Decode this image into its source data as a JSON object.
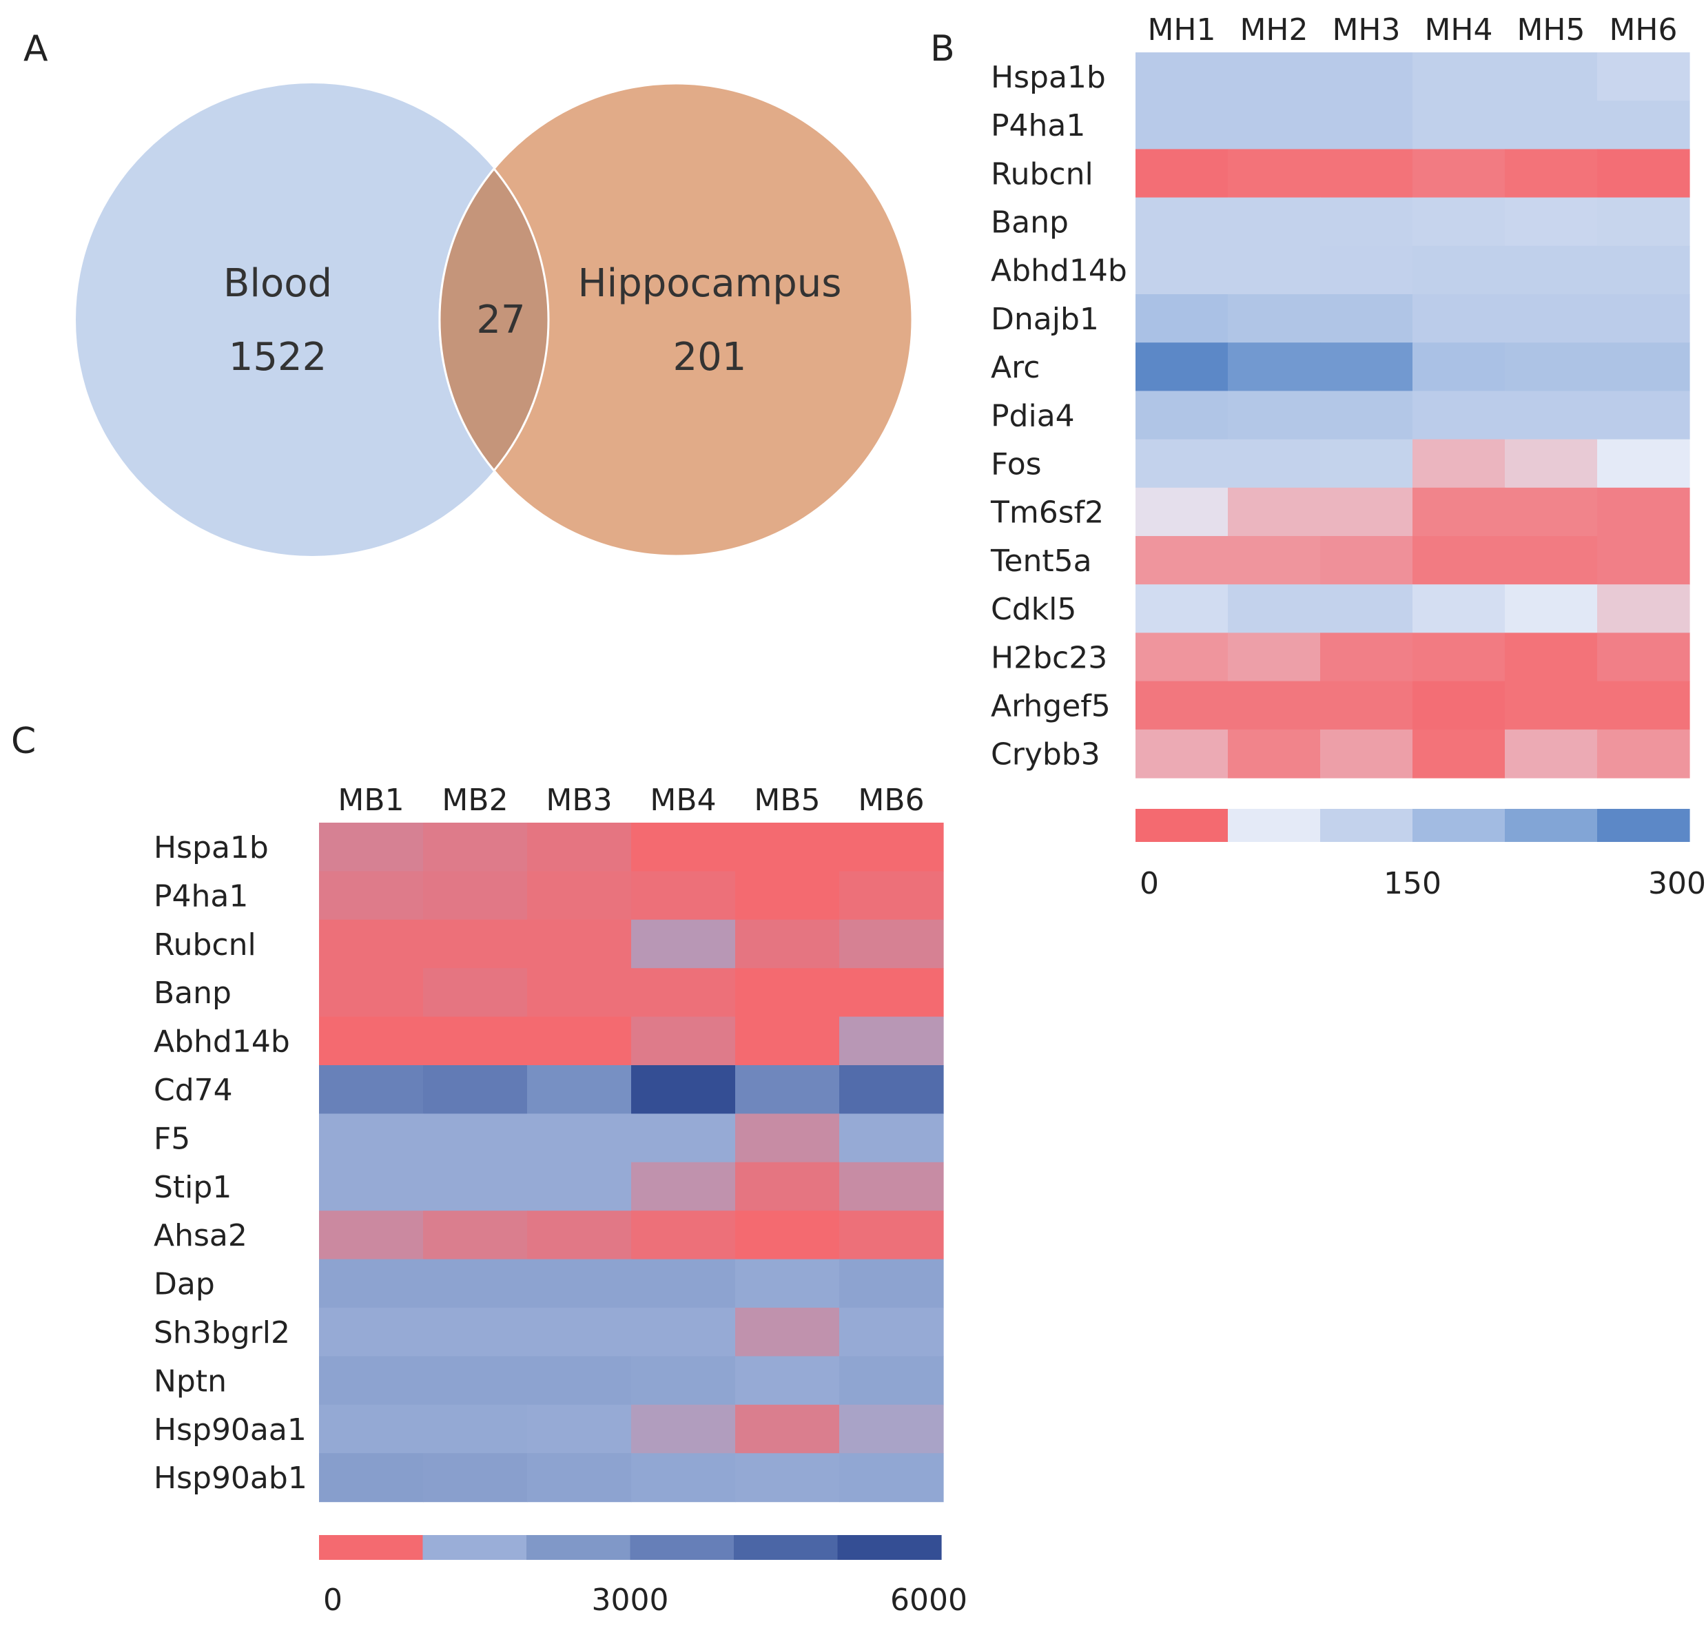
{
  "panels": {
    "a": {
      "label": "A"
    },
    "b": {
      "label": "B"
    },
    "c": {
      "label": "C"
    }
  },
  "chart_data": [
    {
      "type": "venn",
      "sets": [
        {
          "name": "Blood",
          "value": 1522,
          "color": "#c5d5ed"
        },
        {
          "name": "Hippocampus",
          "value": 201,
          "color": "#e1ab88"
        }
      ],
      "intersection": 27,
      "intersection_color": "#c5957a"
    },
    {
      "type": "heatmap",
      "columns": [
        "MH1",
        "MH2",
        "MH3",
        "MH4",
        "MH5",
        "MH6"
      ],
      "rows": [
        "Hspa1b",
        "P4ha1",
        "Rubcnl",
        "Banp",
        "Abhd14b",
        "Dnajb1",
        "Arc",
        "Pdia4",
        "Fos",
        "Tm6sf2",
        "Tent5a",
        "Cdkl5",
        "H2bc23",
        "Arhgef5",
        "Crybb3"
      ],
      "values": [
        [
          140,
          140,
          140,
          125,
          125,
          110
        ],
        [
          140,
          140,
          140,
          125,
          125,
          125
        ],
        [
          2,
          4,
          4,
          8,
          4,
          2
        ],
        [
          120,
          120,
          120,
          115,
          110,
          112
        ],
        [
          120,
          120,
          122,
          125,
          125,
          125
        ],
        [
          165,
          155,
          155,
          135,
          135,
          135
        ],
        [
          300,
          265,
          265,
          165,
          160,
          160
        ],
        [
          155,
          150,
          150,
          135,
          135,
          135
        ],
        [
          120,
          120,
          118,
          35,
          45,
          60
        ],
        [
          55,
          35,
          35,
          12,
          12,
          10
        ],
        [
          20,
          20,
          18,
          8,
          8,
          10
        ],
        [
          95,
          120,
          120,
          90,
          65,
          45
        ],
        [
          20,
          25,
          10,
          8,
          4,
          10
        ],
        [
          6,
          6,
          6,
          2,
          4,
          4
        ],
        [
          30,
          12,
          25,
          4,
          30,
          20
        ]
      ],
      "colorbar": {
        "ticks": [
          "0",
          "150",
          "300"
        ],
        "vmin": 0,
        "vmax": 300,
        "colors": [
          "#f46a70",
          "#e4eaf7",
          "#c3d2ec",
          "#a2bbe2",
          "#82a5d6",
          "#5c88c7"
        ]
      }
    },
    {
      "type": "heatmap",
      "columns": [
        "MB1",
        "MB2",
        "MB3",
        "MB4",
        "MB5",
        "MB6"
      ],
      "rows": [
        "Hspa1b",
        "P4ha1",
        "Rubcnl",
        "Banp",
        "Abhd14b",
        "Cd74",
        "F5",
        "Stip1",
        "Ahsa2",
        "Dap",
        "Sh3bgrl2",
        "Nptn",
        "Hsp90aa1",
        "Hsp90ab1"
      ],
      "values": [
        [
          400,
          300,
          200,
          0,
          0,
          0
        ],
        [
          300,
          250,
          150,
          100,
          0,
          100
        ],
        [
          100,
          100,
          100,
          800,
          200,
          400
        ],
        [
          100,
          200,
          100,
          100,
          0,
          0
        ],
        [
          0,
          0,
          0,
          300,
          0,
          800
        ],
        [
          3500,
          3800,
          2800,
          6000,
          3200,
          4500
        ],
        [
          1400,
          1400,
          1400,
          1400,
          600,
          1400
        ],
        [
          1400,
          1400,
          1400,
          700,
          200,
          600
        ],
        [
          550,
          350,
          250,
          100,
          0,
          100
        ],
        [
          1800,
          1800,
          1800,
          1800,
          1500,
          1800
        ],
        [
          1400,
          1400,
          1400,
          1400,
          700,
          1400
        ],
        [
          1800,
          1800,
          1800,
          1700,
          1400,
          1700
        ],
        [
          1500,
          1500,
          1400,
          900,
          350,
          1000
        ],
        [
          2100,
          2000,
          1800,
          1600,
          1500,
          1600
        ]
      ],
      "colorbar": {
        "ticks": [
          "0",
          "3000",
          "6000"
        ],
        "vmin": 0,
        "vmax": 6000,
        "colors": [
          "#f46a70",
          "#9aaed8",
          "#8098c8",
          "#667fb8",
          "#4b66a6",
          "#344e94"
        ]
      }
    }
  ]
}
